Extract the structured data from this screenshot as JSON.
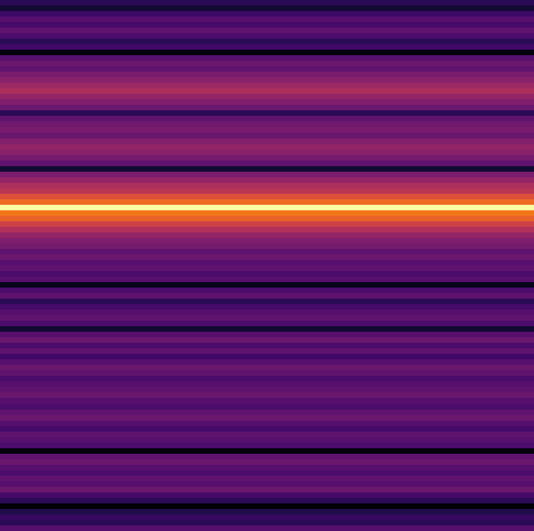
{
  "chart_data": {
    "type": "heatmap",
    "color": "inferno",
    "tick_labels": false,
    "cells": [
      [
        0.3
      ],
      [
        0.25
      ],
      [
        0.33
      ],
      [
        0.38
      ],
      [
        0.35
      ],
      [
        0.4
      ],
      [
        0.36
      ],
      [
        0.3
      ],
      [
        0.34
      ],
      [
        0.2
      ],
      [
        0.38
      ],
      [
        0.42
      ],
      [
        0.4
      ],
      [
        0.45
      ],
      [
        0.48
      ],
      [
        0.52
      ],
      [
        0.55
      ],
      [
        0.5
      ],
      [
        0.46
      ],
      [
        0.42
      ],
      [
        0.3
      ],
      [
        0.4
      ],
      [
        0.43
      ],
      [
        0.45
      ],
      [
        0.42
      ],
      [
        0.47
      ],
      [
        0.5
      ],
      [
        0.48
      ],
      [
        0.44
      ],
      [
        0.4
      ],
      [
        0.25
      ],
      [
        0.45
      ],
      [
        0.5
      ],
      [
        0.55
      ],
      [
        0.58
      ],
      [
        0.66
      ],
      [
        0.72
      ],
      [
        0.98
      ],
      [
        0.74
      ],
      [
        0.7
      ],
      [
        0.62
      ],
      [
        0.56
      ],
      [
        0.5
      ],
      [
        0.46
      ],
      [
        0.44
      ],
      [
        0.4
      ],
      [
        0.42
      ],
      [
        0.38
      ],
      [
        0.4
      ],
      [
        0.36
      ],
      [
        0.38
      ],
      [
        0.22
      ],
      [
        0.36
      ],
      [
        0.4
      ],
      [
        0.3
      ],
      [
        0.35
      ],
      [
        0.38
      ],
      [
        0.4
      ],
      [
        0.36
      ],
      [
        0.25
      ],
      [
        0.38
      ],
      [
        0.42
      ],
      [
        0.36
      ],
      [
        0.4
      ],
      [
        0.34
      ],
      [
        0.38
      ],
      [
        0.42
      ],
      [
        0.4
      ],
      [
        0.36
      ],
      [
        0.38
      ],
      [
        0.4
      ],
      [
        0.42
      ],
      [
        0.38
      ],
      [
        0.36
      ],
      [
        0.4
      ],
      [
        0.42
      ],
      [
        0.38
      ],
      [
        0.35
      ],
      [
        0.4
      ],
      [
        0.38
      ],
      [
        0.36
      ],
      [
        0.2
      ],
      [
        0.4
      ],
      [
        0.42
      ],
      [
        0.38
      ],
      [
        0.36
      ],
      [
        0.4
      ],
      [
        0.38
      ],
      [
        0.42
      ],
      [
        0.35
      ],
      [
        0.3
      ],
      [
        0.18
      ],
      [
        0.28
      ],
      [
        0.32
      ],
      [
        0.3
      ],
      [
        0.38
      ]
    ]
  }
}
